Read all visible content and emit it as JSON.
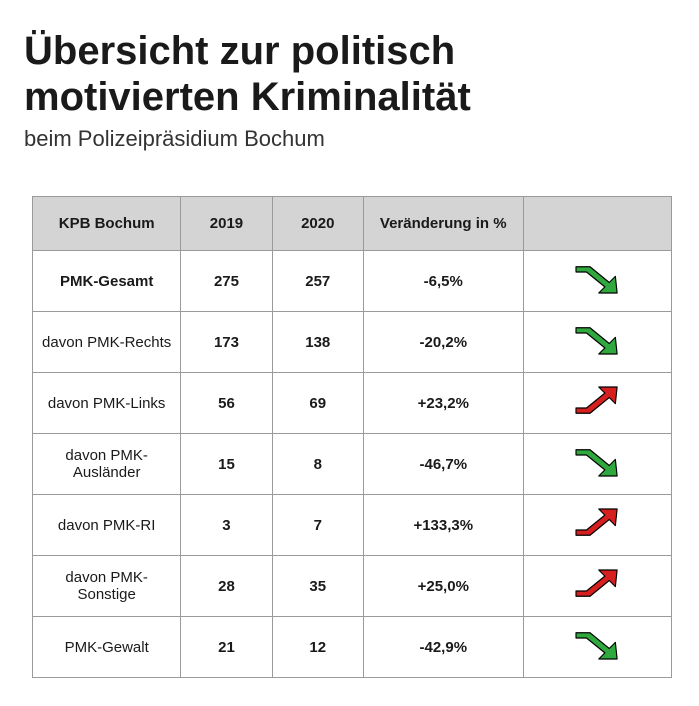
{
  "title": "Übersicht zur politisch motivierten Kriminalität",
  "subtitle": "beim Polizeipräsidium Bochum",
  "colors": {
    "header_bg": "#d4d4d4",
    "border": "#9a9a9a",
    "arrow_down": "#2fa83d",
    "arrow_up": "#d61f1f",
    "arrow_stroke": "#000000",
    "text": "#1a1a1a",
    "background": "#ffffff"
  },
  "table": {
    "columns": [
      "KPB Bochum",
      "2019",
      "2020",
      "Veränderung in %",
      ""
    ],
    "rows": [
      {
        "label": "PMK-Gesamt",
        "y2019": "275",
        "y2020": "257",
        "change": "-6,5%",
        "dir": "down",
        "bold": true
      },
      {
        "label": "davon PMK-Rechts",
        "y2019": "173",
        "y2020": "138",
        "change": "-20,2%",
        "dir": "down",
        "bold": false
      },
      {
        "label": "davon PMK-Links",
        "y2019": "56",
        "y2020": "69",
        "change": "+23,2%",
        "dir": "up",
        "bold": false
      },
      {
        "label": "davon PMK-Ausländer",
        "y2019": "15",
        "y2020": "8",
        "change": "-46,7%",
        "dir": "down",
        "bold": false
      },
      {
        "label": "davon PMK-RI",
        "y2019": "3",
        "y2020": "7",
        "change": "+133,3%",
        "dir": "up",
        "bold": false
      },
      {
        "label": "davon PMK-Sonstige",
        "y2019": "28",
        "y2020": "35",
        "change": "+25,0%",
        "dir": "up",
        "bold": false
      },
      {
        "label": "PMK-Gewalt",
        "y2019": "21",
        "y2020": "12",
        "change": "-42,9%",
        "dir": "down",
        "bold": false
      }
    ]
  }
}
